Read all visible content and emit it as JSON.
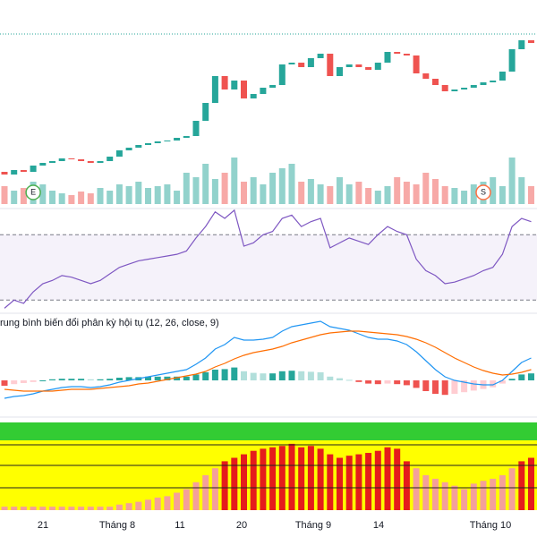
{
  "candles": {
    "open": [
      18,
      15,
      20,
      18,
      25,
      28,
      30,
      33,
      32,
      30,
      28,
      30,
      35,
      42,
      45,
      48,
      50,
      52,
      53,
      56,
      58,
      75,
      95,
      125,
      110,
      120,
      100,
      105,
      112,
      115,
      138,
      140,
      135,
      145,
      150,
      125,
      135,
      138,
      135,
      132,
      140,
      152,
      150,
      148,
      128,
      122,
      115,
      108,
      110,
      112,
      115,
      118,
      120,
      130,
      155,
      165
    ],
    "close": [
      15,
      20,
      18,
      25,
      28,
      30,
      33,
      32,
      30,
      28,
      30,
      35,
      42,
      45,
      48,
      50,
      52,
      53,
      56,
      58,
      75,
      95,
      125,
      110,
      120,
      100,
      105,
      112,
      115,
      138,
      140,
      135,
      145,
      150,
      125,
      135,
      138,
      135,
      132,
      140,
      152,
      150,
      148,
      128,
      122,
      115,
      108,
      110,
      112,
      115,
      118,
      120,
      130,
      155,
      165,
      162
    ],
    "ylim": [
      0,
      180
    ],
    "up_color": "#26a69a",
    "down_color": "#ef5350"
  },
  "volume": [
    20,
    15,
    18,
    25,
    22,
    15,
    12,
    10,
    14,
    12,
    18,
    15,
    22,
    20,
    25,
    18,
    20,
    22,
    15,
    35,
    30,
    45,
    28,
    35,
    52,
    25,
    30,
    22,
    35,
    40,
    45,
    25,
    28,
    22,
    20,
    30,
    22,
    25,
    18,
    15,
    20,
    30,
    25,
    22,
    35,
    28,
    20,
    18,
    15,
    22,
    25,
    30,
    20,
    52,
    30,
    20
  ],
  "markers": [
    "E",
    "S"
  ],
  "rsi": {
    "values": [
      25,
      30,
      28,
      35,
      40,
      42,
      45,
      44,
      42,
      40,
      42,
      46,
      50,
      52,
      54,
      55,
      56,
      57,
      58,
      60,
      68,
      75,
      84,
      80,
      85,
      63,
      65,
      70,
      72,
      80,
      82,
      75,
      78,
      80,
      62,
      65,
      68,
      66,
      64,
      70,
      75,
      72,
      70,
      55,
      48,
      45,
      40,
      41,
      43,
      45,
      48,
      50,
      58,
      75,
      80,
      78
    ],
    "bands": [
      30,
      70
    ],
    "color": "#7e57c2"
  },
  "macd": {
    "title": "rung bình biến đổi phân kỳ hội tụ (12, 26, close, 9)",
    "macd": [
      -20,
      -18,
      -17,
      -15,
      -12,
      -10,
      -8,
      -7,
      -7,
      -8,
      -7,
      -5,
      -2,
      0,
      2,
      4,
      6,
      8,
      10,
      12,
      18,
      25,
      35,
      40,
      48,
      45,
      45,
      46,
      48,
      55,
      60,
      62,
      64,
      66,
      60,
      58,
      56,
      52,
      48,
      46,
      46,
      44,
      40,
      32,
      22,
      12,
      4,
      0,
      -2,
      -4,
      -5,
      -5,
      0,
      10,
      20,
      25
    ],
    "signal": [
      -10,
      -11,
      -12,
      -12,
      -12,
      -12,
      -11,
      -10,
      -10,
      -10,
      -9,
      -8,
      -7,
      -6,
      -4,
      -3,
      -1,
      1,
      3,
      5,
      7,
      10,
      15,
      19,
      24,
      28,
      31,
      33,
      35,
      38,
      42,
      45,
      48,
      51,
      53,
      54,
      55,
      55,
      54,
      53,
      52,
      51,
      49,
      46,
      42,
      37,
      31,
      25,
      20,
      15,
      11,
      8,
      6,
      7,
      9,
      12
    ],
    "histogram": [
      -10,
      -7,
      -5,
      -3,
      0,
      2,
      3,
      3,
      3,
      2,
      2,
      3,
      5,
      6,
      6,
      7,
      7,
      7,
      7,
      7,
      11,
      15,
      20,
      21,
      24,
      17,
      14,
      13,
      13,
      17,
      18,
      17,
      16,
      15,
      7,
      4,
      1,
      -3,
      -6,
      -7,
      -6,
      -7,
      -9,
      -14,
      -20,
      -25,
      -27,
      -25,
      -22,
      -19,
      -16,
      -13,
      -6,
      3,
      11,
      13
    ]
  },
  "bottom": [
    5,
    5,
    5,
    5,
    5,
    5,
    5,
    5,
    5,
    5,
    5,
    5,
    8,
    10,
    12,
    15,
    18,
    20,
    25,
    30,
    40,
    50,
    60,
    70,
    75,
    80,
    85,
    88,
    90,
    92,
    95,
    90,
    92,
    88,
    80,
    75,
    78,
    80,
    82,
    85,
    90,
    88,
    70,
    60,
    50,
    45,
    40,
    35,
    30,
    38,
    42,
    45,
    50,
    60,
    70,
    75
  ],
  "x_axis_labels": [
    "21",
    "Tháng 8",
    "11",
    "20",
    "Tháng 9",
    "14",
    "Tháng 10"
  ]
}
